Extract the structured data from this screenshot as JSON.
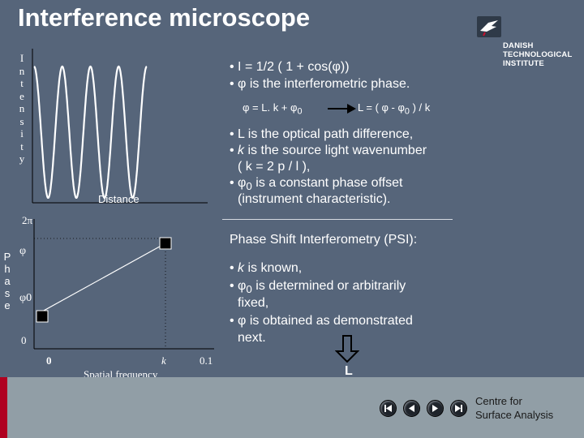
{
  "title": "Interference microscope",
  "logo": {
    "line1": "DANISH",
    "line2": "TECHNOLOGICAL",
    "line3": "INSTITUTE",
    "icon": "bird-logo-icon"
  },
  "top_chart": {
    "ylabel": "Intensity",
    "xlabel": "Distance"
  },
  "bottom_chart": {
    "ylabel": "Phase",
    "y_ticks": [
      "2π",
      "φ",
      "φ0",
      "0"
    ],
    "x_ticks": [
      "0",
      "k",
      "0.1"
    ],
    "xlabel": "Spatial frequency"
  },
  "eq1": "• I = 1/2 ( 1 + cos(φ))",
  "eq2": "• φ  is the interferometric phase.",
  "eq3a": "φ = L. k + φ",
  "eq3a_sub": "0",
  "eq3b": "L = ( φ - φ",
  "eq3b_sub": "0",
  "eq3b_end": " ) / k",
  "bul1": "• L is the optical path difference,",
  "bul2a": "• ",
  "bul2b": "k",
  "bul2c": " is the source light wavenumber",
  "bul3": "( k = 2 p / l ),",
  "bul4a": "• φ",
  "bul4sub": "0",
  "bul4b": " is a constant phase offset",
  "bul5": "(instrument characteristic).",
  "psi_title": "Phase Shift Interferometry (PSI):",
  "psi1a": "• ",
  "psi1b": "k",
  "psi1c": " is known,",
  "psi2a": "• φ",
  "psi2sub": "0",
  "psi2b": " is determined or arbitrarily",
  "psi3": "fixed,",
  "psi4": "• φ  is obtained as demonstrated",
  "psi5": "next.",
  "arrow_label": "L",
  "footer": {
    "line1": "Centre for",
    "line2": "Surface Analysis"
  },
  "nav_icons": [
    "first-slide-icon",
    "previous-slide-icon",
    "next-slide-icon",
    "last-slide-icon"
  ],
  "colors": {
    "background": "#56657a",
    "bottom_bar": "#919ea6",
    "accent_red": "#b00020"
  }
}
